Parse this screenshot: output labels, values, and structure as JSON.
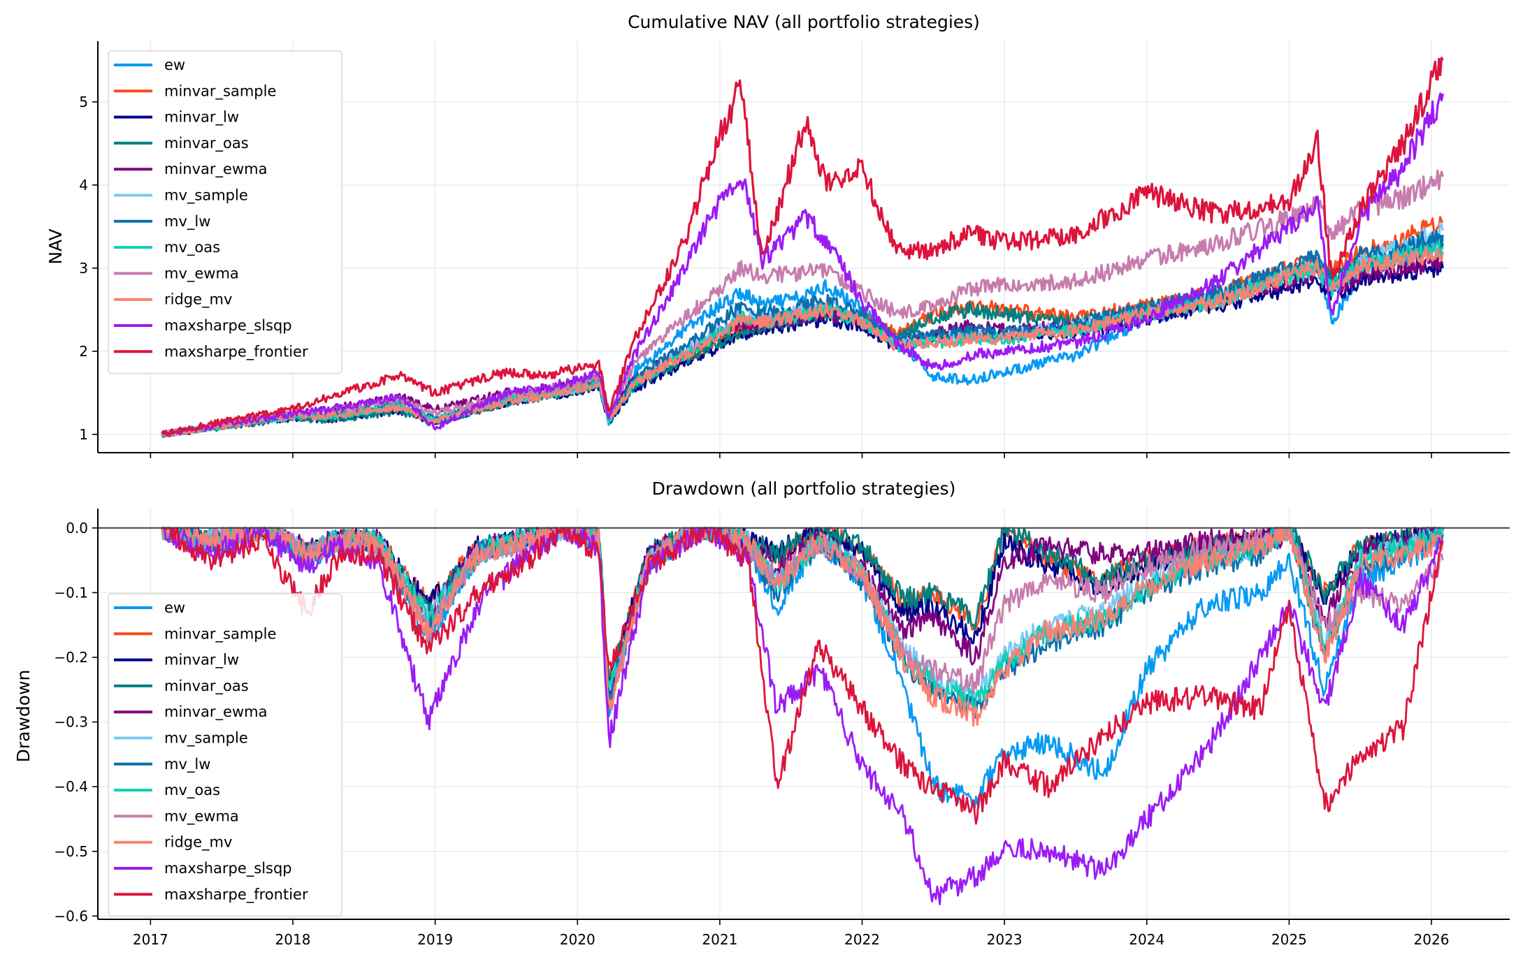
{
  "chart_data": [
    {
      "type": "line",
      "title": "Cumulative NAV (all portfolio strategies)",
      "xlabel": "",
      "ylabel": "NAV",
      "xlim": [
        2016.63,
        2026.55
      ],
      "ylim": [
        0.78,
        5.73
      ],
      "yticks": [
        1,
        2,
        3,
        4,
        5
      ],
      "ytick_labels": [
        "1",
        "2",
        "3",
        "4",
        "5"
      ],
      "xticks": [
        2017,
        2018,
        2019,
        2020,
        2021,
        2022,
        2023,
        2024,
        2025,
        2026
      ],
      "xtick_labels": [
        "",
        "",
        "",
        "",
        "",
        "",
        "",
        "",
        "",
        ""
      ],
      "grid": true,
      "legend_position": "upper-left",
      "x": [
        2017.08,
        2017.5,
        2018.0,
        2018.25,
        2018.75,
        2019.0,
        2019.5,
        2019.75,
        2020.0,
        2020.15,
        2020.22,
        2020.4,
        2020.75,
        2021.0,
        2021.15,
        2021.3,
        2021.6,
        2021.75,
        2022.0,
        2022.25,
        2022.5,
        2022.75,
        2023.0,
        2023.5,
        2024.0,
        2024.5,
        2025.0,
        2025.2,
        2025.3,
        2025.5,
        2025.8,
        2026.08
      ],
      "series": [
        {
          "name": "ew",
          "color": "#069af3",
          "values": [
            1.0,
            1.12,
            1.25,
            1.23,
            1.38,
            1.12,
            1.45,
            1.5,
            1.6,
            1.7,
            1.15,
            1.75,
            2.25,
            2.55,
            2.7,
            2.55,
            2.65,
            2.8,
            2.5,
            2.1,
            1.7,
            1.65,
            1.75,
            1.95,
            2.4,
            2.65,
            2.95,
            3.1,
            2.35,
            2.95,
            3.1,
            3.35
          ]
        },
        {
          "name": "minvar_sample",
          "color": "#fc4a1a",
          "values": [
            1.0,
            1.1,
            1.22,
            1.2,
            1.3,
            1.15,
            1.4,
            1.48,
            1.55,
            1.62,
            1.18,
            1.62,
            1.9,
            2.15,
            2.3,
            2.35,
            2.45,
            2.5,
            2.4,
            2.2,
            2.45,
            2.55,
            2.5,
            2.4,
            2.55,
            2.7,
            3.0,
            3.1,
            2.95,
            3.2,
            3.35,
            3.55
          ]
        },
        {
          "name": "minvar_lw",
          "color": "#00008b",
          "values": [
            1.0,
            1.09,
            1.2,
            1.18,
            1.28,
            1.15,
            1.38,
            1.45,
            1.52,
            1.58,
            1.15,
            1.55,
            1.85,
            2.05,
            2.2,
            2.25,
            2.35,
            2.38,
            2.3,
            2.05,
            2.15,
            2.25,
            2.2,
            2.22,
            2.4,
            2.55,
            2.75,
            2.85,
            2.65,
            2.85,
            2.95,
            3.0
          ]
        },
        {
          "name": "minvar_oas",
          "color": "#008080",
          "values": [
            1.0,
            1.09,
            1.2,
            1.17,
            1.28,
            1.15,
            1.38,
            1.45,
            1.53,
            1.6,
            1.16,
            1.58,
            1.9,
            2.1,
            2.25,
            2.3,
            2.4,
            2.45,
            2.4,
            2.15,
            2.4,
            2.5,
            2.45,
            2.35,
            2.5,
            2.65,
            2.95,
            3.05,
            2.85,
            3.05,
            3.15,
            3.3
          ]
        },
        {
          "name": "minvar_ewma",
          "color": "#800080",
          "values": [
            1.0,
            1.11,
            1.24,
            1.3,
            1.45,
            1.3,
            1.5,
            1.55,
            1.62,
            1.7,
            1.2,
            1.68,
            2.0,
            2.25,
            2.3,
            2.35,
            2.4,
            2.45,
            2.35,
            2.1,
            2.2,
            2.3,
            2.25,
            2.3,
            2.45,
            2.65,
            2.85,
            2.95,
            2.75,
            2.9,
            3.0,
            3.08
          ]
        },
        {
          "name": "mv_sample",
          "color": "#7bc8f6",
          "values": [
            1.0,
            1.1,
            1.22,
            1.22,
            1.35,
            1.18,
            1.42,
            1.48,
            1.56,
            1.62,
            1.17,
            1.65,
            2.0,
            2.25,
            2.45,
            2.4,
            2.5,
            2.55,
            2.4,
            2.1,
            2.15,
            2.2,
            2.2,
            2.3,
            2.5,
            2.65,
            2.95,
            3.05,
            2.75,
            3.1,
            3.25,
            3.45
          ]
        },
        {
          "name": "mv_lw",
          "color": "#0a6fad",
          "values": [
            1.0,
            1.1,
            1.22,
            1.22,
            1.35,
            1.18,
            1.42,
            1.48,
            1.57,
            1.64,
            1.16,
            1.68,
            2.05,
            2.35,
            2.55,
            2.45,
            2.55,
            2.6,
            2.45,
            2.15,
            2.2,
            2.25,
            2.22,
            2.32,
            2.52,
            2.7,
            3.0,
            3.15,
            2.8,
            3.15,
            3.25,
            3.4
          ]
        },
        {
          "name": "mv_oas",
          "color": "#0bd1b4",
          "values": [
            1.0,
            1.1,
            1.22,
            1.21,
            1.34,
            1.17,
            1.41,
            1.47,
            1.55,
            1.62,
            1.16,
            1.62,
            1.95,
            2.2,
            2.4,
            2.35,
            2.45,
            2.5,
            2.35,
            2.05,
            2.1,
            2.15,
            2.15,
            2.25,
            2.45,
            2.6,
            2.9,
            3.0,
            2.75,
            3.05,
            3.15,
            3.25
          ]
        },
        {
          "name": "mv_ewma",
          "color": "#c77cae",
          "values": [
            1.0,
            1.12,
            1.25,
            1.28,
            1.42,
            1.25,
            1.48,
            1.52,
            1.62,
            1.7,
            1.25,
            1.85,
            2.4,
            2.75,
            3.0,
            2.9,
            2.95,
            2.95,
            2.7,
            2.45,
            2.55,
            2.75,
            2.8,
            2.85,
            3.1,
            3.3,
            3.6,
            3.75,
            3.4,
            3.7,
            3.85,
            4.1
          ]
        },
        {
          "name": "ridge_mv",
          "color": "#fa8072",
          "values": [
            1.0,
            1.1,
            1.22,
            1.22,
            1.33,
            1.15,
            1.4,
            1.46,
            1.54,
            1.62,
            1.17,
            1.62,
            1.95,
            2.2,
            2.4,
            2.35,
            2.45,
            2.5,
            2.35,
            2.05,
            2.1,
            2.15,
            2.15,
            2.25,
            2.45,
            2.6,
            2.9,
            3.0,
            2.75,
            3.0,
            3.1,
            3.2
          ]
        },
        {
          "name": "maxsharpe_slsqp",
          "color": "#9b1bf5",
          "values": [
            1.0,
            1.12,
            1.25,
            1.3,
            1.45,
            1.08,
            1.5,
            1.55,
            1.65,
            1.75,
            1.2,
            1.95,
            3.0,
            3.8,
            4.15,
            3.1,
            3.6,
            3.35,
            2.6,
            2.1,
            1.8,
            1.95,
            2.0,
            2.1,
            2.4,
            2.85,
            3.5,
            3.75,
            2.45,
            3.6,
            4.2,
            5.1
          ]
        },
        {
          "name": "maxsharpe_frontier",
          "color": "#dc143c",
          "values": [
            1.0,
            1.15,
            1.3,
            1.45,
            1.7,
            1.5,
            1.75,
            1.7,
            1.8,
            1.85,
            1.25,
            2.15,
            3.3,
            4.6,
            5.2,
            3.1,
            4.75,
            4.0,
            4.2,
            3.2,
            3.2,
            3.45,
            3.3,
            3.4,
            3.9,
            3.65,
            3.8,
            4.5,
            2.85,
            3.7,
            4.5,
            5.5
          ]
        }
      ]
    },
    {
      "type": "line",
      "title": "Drawdown (all portfolio strategies)",
      "xlabel": "",
      "ylabel": "Drawdown",
      "xlim": [
        2016.63,
        2026.55
      ],
      "ylim": [
        -0.605,
        0.03
      ],
      "yticks": [
        0.0,
        -0.1,
        -0.2,
        -0.3,
        -0.4,
        -0.5,
        -0.6
      ],
      "ytick_labels": [
        "0.0",
        "−0.1",
        "−0.2",
        "−0.3",
        "−0.4",
        "−0.5",
        "−0.6"
      ],
      "xticks": [
        2017,
        2018,
        2019,
        2020,
        2021,
        2022,
        2023,
        2024,
        2025,
        2026
      ],
      "xtick_labels": [
        "2017",
        "2018",
        "2019",
        "2020",
        "2021",
        "2022",
        "2023",
        "2024",
        "2025",
        "2026"
      ],
      "reference_line": 0.0,
      "grid": true,
      "legend_position": "lower-left",
      "x": [
        2017.08,
        2017.4,
        2017.8,
        2018.1,
        2018.3,
        2018.6,
        2018.95,
        2019.3,
        2019.6,
        2019.9,
        2020.15,
        2020.22,
        2020.5,
        2020.9,
        2021.2,
        2021.4,
        2021.7,
        2022.0,
        2022.3,
        2022.5,
        2022.8,
        2023.0,
        2023.3,
        2023.7,
        2024.0,
        2024.4,
        2024.8,
        2025.0,
        2025.25,
        2025.5,
        2025.8,
        2026.08
      ],
      "series": [
        {
          "name": "ew",
          "color": "#069af3",
          "values": [
            0.0,
            -0.03,
            0.0,
            -0.05,
            -0.02,
            -0.03,
            -0.17,
            -0.04,
            -0.02,
            0.0,
            -0.02,
            -0.28,
            -0.05,
            0.0,
            -0.03,
            -0.12,
            -0.02,
            -0.08,
            -0.25,
            -0.4,
            -0.42,
            -0.35,
            -0.33,
            -0.38,
            -0.22,
            -0.12,
            -0.1,
            -0.05,
            -0.25,
            -0.08,
            -0.05,
            -0.02
          ]
        },
        {
          "name": "minvar_sample",
          "color": "#fc4a1a",
          "values": [
            0.0,
            -0.02,
            0.0,
            -0.04,
            -0.02,
            -0.02,
            -0.12,
            -0.03,
            -0.02,
            0.0,
            -0.01,
            -0.24,
            -0.04,
            0.0,
            -0.02,
            -0.05,
            0.0,
            -0.03,
            -0.12,
            -0.1,
            -0.15,
            0.0,
            -0.05,
            -0.08,
            -0.05,
            -0.03,
            -0.02,
            0.0,
            -0.1,
            -0.03,
            -0.02,
            0.0
          ]
        },
        {
          "name": "minvar_lw",
          "color": "#00008b",
          "values": [
            0.0,
            -0.02,
            0.0,
            -0.04,
            -0.02,
            -0.02,
            -0.12,
            -0.03,
            -0.02,
            0.0,
            -0.01,
            -0.24,
            -0.04,
            0.0,
            -0.02,
            -0.04,
            0.0,
            -0.04,
            -0.13,
            -0.12,
            -0.17,
            -0.02,
            -0.06,
            -0.09,
            -0.06,
            -0.03,
            -0.02,
            0.0,
            -0.11,
            -0.03,
            -0.02,
            0.0
          ]
        },
        {
          "name": "minvar_oas",
          "color": "#008080",
          "values": [
            0.0,
            -0.02,
            0.0,
            -0.05,
            -0.02,
            -0.02,
            -0.13,
            -0.03,
            -0.02,
            0.0,
            -0.01,
            -0.25,
            -0.04,
            0.0,
            -0.02,
            -0.04,
            0.0,
            -0.03,
            -0.11,
            -0.1,
            -0.14,
            0.0,
            -0.04,
            -0.08,
            -0.05,
            -0.03,
            -0.02,
            0.0,
            -0.1,
            -0.03,
            -0.02,
            0.0
          ]
        },
        {
          "name": "minvar_ewma",
          "color": "#800080",
          "values": [
            0.0,
            -0.02,
            0.0,
            -0.03,
            -0.02,
            -0.02,
            -0.14,
            -0.03,
            -0.02,
            0.0,
            -0.01,
            -0.26,
            -0.04,
            0.0,
            -0.03,
            -0.06,
            -0.02,
            -0.06,
            -0.16,
            -0.14,
            -0.2,
            -0.05,
            -0.03,
            -0.04,
            -0.04,
            -0.02,
            -0.02,
            -0.01,
            -0.14,
            -0.04,
            -0.02,
            0.0
          ]
        },
        {
          "name": "mv_sample",
          "color": "#7bc8f6",
          "values": [
            0.0,
            -0.02,
            0.0,
            -0.04,
            -0.02,
            -0.02,
            -0.14,
            -0.04,
            -0.02,
            0.0,
            -0.02,
            -0.26,
            -0.05,
            0.0,
            -0.02,
            -0.08,
            -0.02,
            -0.07,
            -0.19,
            -0.23,
            -0.26,
            -0.2,
            -0.15,
            -0.13,
            -0.08,
            -0.05,
            -0.03,
            0.0,
            -0.18,
            -0.05,
            -0.03,
            -0.01
          ]
        },
        {
          "name": "mv_lw",
          "color": "#0a6fad",
          "values": [
            0.0,
            -0.02,
            0.0,
            -0.04,
            -0.02,
            -0.02,
            -0.15,
            -0.04,
            -0.02,
            0.0,
            -0.02,
            -0.27,
            -0.05,
            0.0,
            -0.03,
            -0.1,
            -0.02,
            -0.08,
            -0.21,
            -0.25,
            -0.28,
            -0.22,
            -0.18,
            -0.15,
            -0.1,
            -0.06,
            -0.04,
            0.0,
            -0.2,
            -0.06,
            -0.04,
            -0.01
          ]
        },
        {
          "name": "mv_oas",
          "color": "#0bd1b4",
          "values": [
            0.0,
            -0.02,
            0.0,
            -0.04,
            -0.02,
            -0.02,
            -0.14,
            -0.04,
            -0.02,
            0.0,
            -0.02,
            -0.26,
            -0.05,
            0.0,
            -0.02,
            -0.09,
            -0.02,
            -0.07,
            -0.2,
            -0.24,
            -0.27,
            -0.21,
            -0.16,
            -0.14,
            -0.09,
            -0.05,
            -0.03,
            0.0,
            -0.19,
            -0.05,
            -0.03,
            -0.01
          ]
        },
        {
          "name": "mv_ewma",
          "color": "#c77cae",
          "values": [
            0.0,
            -0.02,
            0.0,
            -0.04,
            -0.02,
            -0.03,
            -0.16,
            -0.04,
            -0.03,
            0.0,
            -0.02,
            -0.28,
            -0.05,
            0.0,
            -0.03,
            -0.08,
            -0.02,
            -0.07,
            -0.2,
            -0.22,
            -0.24,
            -0.12,
            -0.08,
            -0.1,
            -0.06,
            -0.03,
            -0.02,
            0.0,
            -0.15,
            -0.1,
            -0.12,
            -0.05
          ]
        },
        {
          "name": "ridge_mv",
          "color": "#fa8072",
          "values": [
            0.0,
            -0.02,
            0.0,
            -0.04,
            -0.02,
            -0.02,
            -0.16,
            -0.04,
            -0.02,
            0.0,
            -0.02,
            -0.28,
            -0.05,
            0.0,
            -0.02,
            -0.09,
            -0.02,
            -0.07,
            -0.21,
            -0.26,
            -0.29,
            -0.22,
            -0.16,
            -0.14,
            -0.09,
            -0.05,
            -0.03,
            0.0,
            -0.2,
            -0.06,
            -0.04,
            -0.02
          ]
        },
        {
          "name": "maxsharpe_slsqp",
          "color": "#9b1bf5",
          "values": [
            0.0,
            -0.04,
            -0.01,
            -0.06,
            -0.03,
            -0.05,
            -0.3,
            -0.12,
            -0.05,
            0.0,
            -0.03,
            -0.33,
            -0.06,
            0.0,
            -0.05,
            -0.28,
            -0.22,
            -0.37,
            -0.45,
            -0.57,
            -0.54,
            -0.49,
            -0.5,
            -0.53,
            -0.45,
            -0.35,
            -0.2,
            -0.12,
            -0.28,
            -0.08,
            -0.15,
            -0.02
          ]
        },
        {
          "name": "maxsharpe_frontier",
          "color": "#dc143c",
          "values": [
            0.0,
            -0.05,
            -0.02,
            -0.13,
            -0.05,
            -0.04,
            -0.19,
            -0.1,
            -0.06,
            0.0,
            -0.04,
            -0.22,
            -0.06,
            0.0,
            -0.05,
            -0.4,
            -0.18,
            -0.28,
            -0.37,
            -0.4,
            -0.44,
            -0.36,
            -0.4,
            -0.32,
            -0.27,
            -0.26,
            -0.28,
            -0.12,
            -0.43,
            -0.35,
            -0.31,
            -0.02
          ]
        }
      ]
    }
  ]
}
